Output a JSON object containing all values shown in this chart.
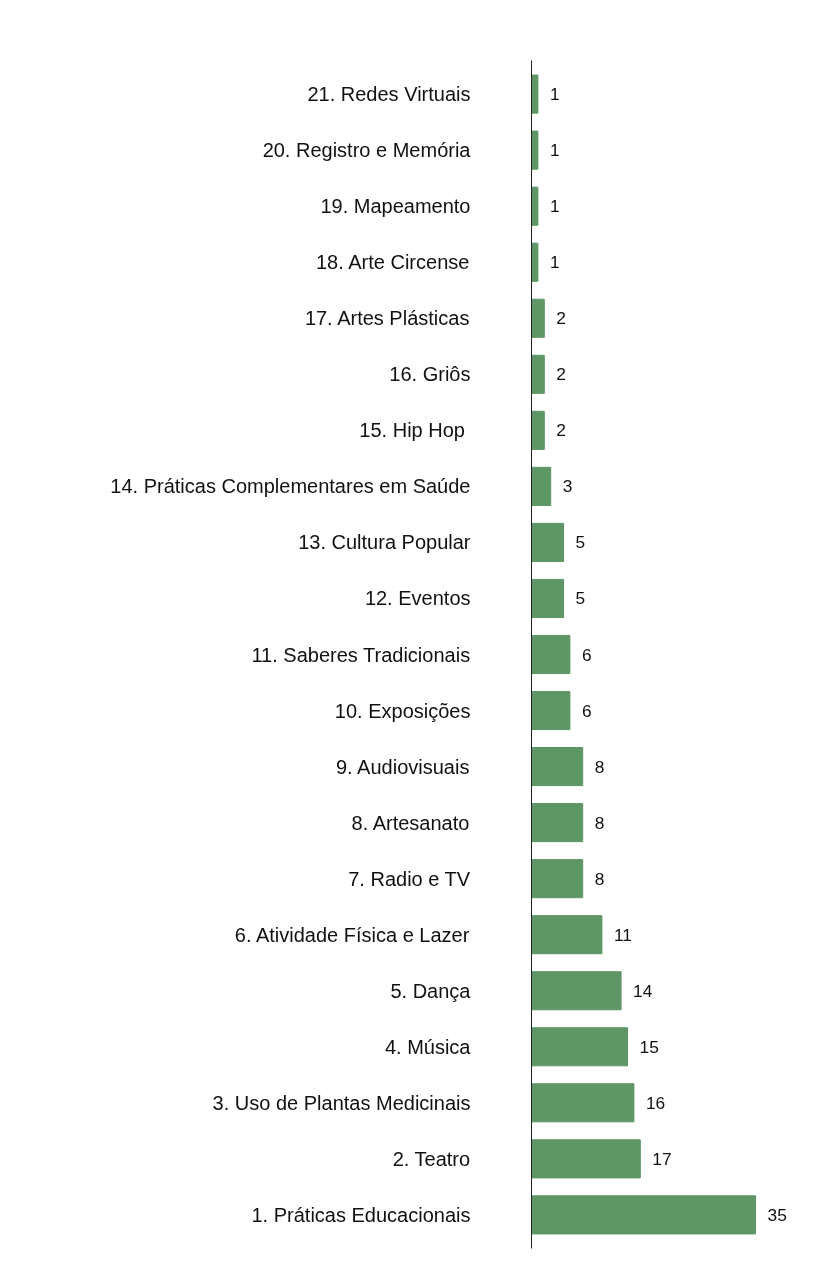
{
  "chart_data": {
    "type": "bar",
    "orientation": "horizontal",
    "data_labels": true,
    "color": "#5e9665",
    "categories": [
      "21. Redes Virtuais",
      "20. Registro e Memória",
      "19. Mapeamento",
      "18. Arte Circense",
      "17. Artes Plásticas",
      "16. Griôs",
      "15.  Hip Hop",
      "14. Práticas Complementares em Saúde",
      "13. Cultura Popular",
      "12. Eventos",
      "11. Saberes Tradicionais",
      "10. Exposições",
      "9. Audiovisuais",
      "8. Artesanato",
      "7. Radio e TV",
      "6. Atividade Física e Lazer",
      "5. Dança",
      "4. Música",
      "3. Uso de Plantas Medicinais",
      "2. Teatro",
      "1. Práticas Educacionais"
    ],
    "values": [
      1,
      1,
      1,
      1,
      2,
      2,
      2,
      3,
      5,
      5,
      6,
      6,
      8,
      8,
      8,
      11,
      14,
      15,
      16,
      17,
      35
    ]
  }
}
